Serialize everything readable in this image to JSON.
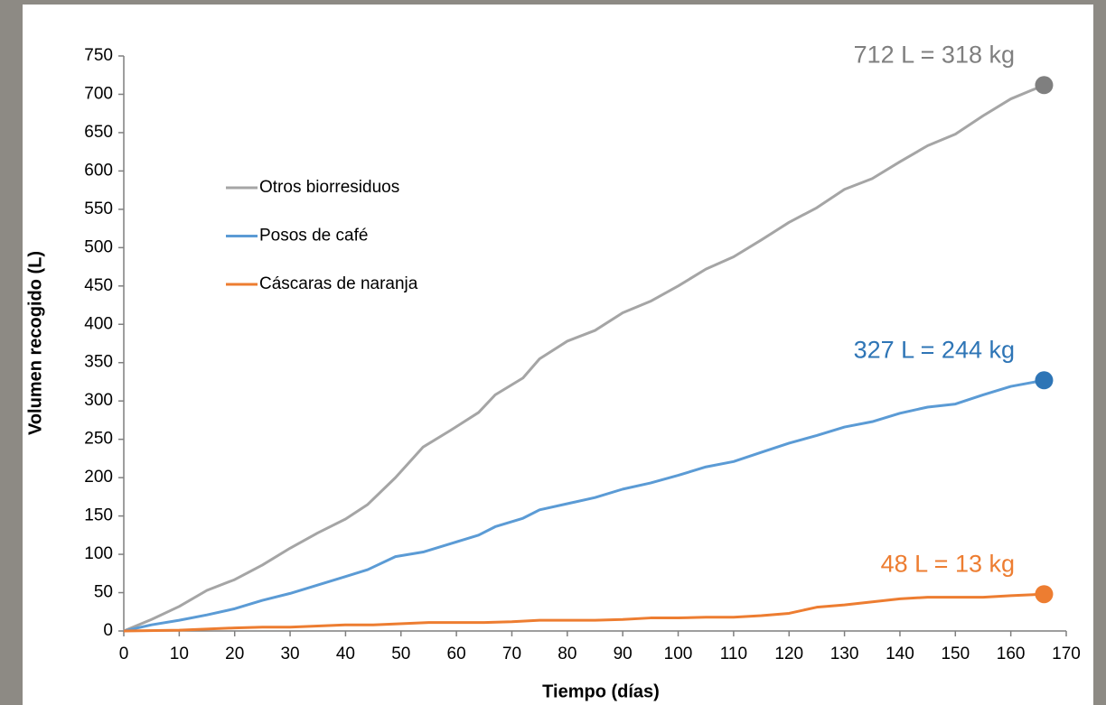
{
  "chart_data": {
    "type": "line",
    "x_label": "Tiempo (días)",
    "y_label": "Volumen recogido (L)",
    "xlim": [
      0,
      170
    ],
    "xticks": [
      0,
      10,
      20,
      30,
      40,
      50,
      60,
      70,
      80,
      90,
      100,
      110,
      120,
      130,
      140,
      150,
      160,
      170
    ],
    "ylim": [
      0,
      750
    ],
    "yticks": [
      0,
      50,
      100,
      150,
      200,
      250,
      300,
      350,
      400,
      450,
      500,
      550,
      600,
      650,
      700,
      750
    ],
    "grid": false,
    "legend": "upper left",
    "series": [
      {
        "name": "Otros biorresiduos",
        "color": "#a5a5a5",
        "end_color": "#7f7f7f",
        "annotation": "712 L = 318 kg",
        "x": [
          0,
          5,
          10,
          15,
          20,
          25,
          30,
          35,
          40,
          44,
          49,
          54,
          59,
          64,
          67,
          72,
          75,
          80,
          85,
          90,
          95,
          100,
          105,
          110,
          115,
          120,
          125,
          130,
          135,
          140,
          145,
          150,
          155,
          160,
          166
        ],
        "values": [
          0,
          15,
          32,
          53,
          67,
          86,
          108,
          128,
          146,
          165,
          200,
          240,
          262,
          285,
          308,
          330,
          355,
          378,
          392,
          415,
          430,
          450,
          472,
          488,
          510,
          533,
          552,
          576,
          590,
          612,
          633,
          648,
          672,
          694,
          712
        ]
      },
      {
        "name": "Posos de café",
        "color": "#5b9bd5",
        "end_color": "#2e75b6",
        "annotation": "327 L = 244 kg",
        "x": [
          0,
          5,
          10,
          15,
          20,
          25,
          30,
          35,
          40,
          44,
          49,
          54,
          59,
          64,
          67,
          72,
          75,
          80,
          85,
          90,
          95,
          100,
          105,
          110,
          115,
          120,
          125,
          130,
          135,
          140,
          145,
          150,
          155,
          160,
          166
        ],
        "values": [
          0,
          8,
          14,
          21,
          29,
          40,
          49,
          60,
          71,
          80,
          97,
          103,
          114,
          125,
          136,
          147,
          158,
          166,
          174,
          185,
          193,
          203,
          214,
          221,
          233,
          245,
          255,
          266,
          273,
          284,
          292,
          296,
          308,
          319,
          327
        ]
      },
      {
        "name": "Cáscaras de naranja",
        "color": "#ed7d31",
        "end_color": "#ed7d31",
        "annotation": "48 L = 13 kg",
        "x": [
          0,
          10,
          20,
          25,
          30,
          40,
          45,
          55,
          65,
          70,
          75,
          85,
          90,
          95,
          100,
          105,
          110,
          115,
          120,
          125,
          130,
          135,
          140,
          145,
          150,
          155,
          160,
          166
        ],
        "values": [
          0,
          1,
          4,
          5,
          5,
          8,
          8,
          11,
          11,
          12,
          14,
          14,
          15,
          17,
          17,
          18,
          18,
          20,
          23,
          31,
          34,
          38,
          42,
          44,
          44,
          44,
          46,
          48
        ]
      }
    ]
  }
}
